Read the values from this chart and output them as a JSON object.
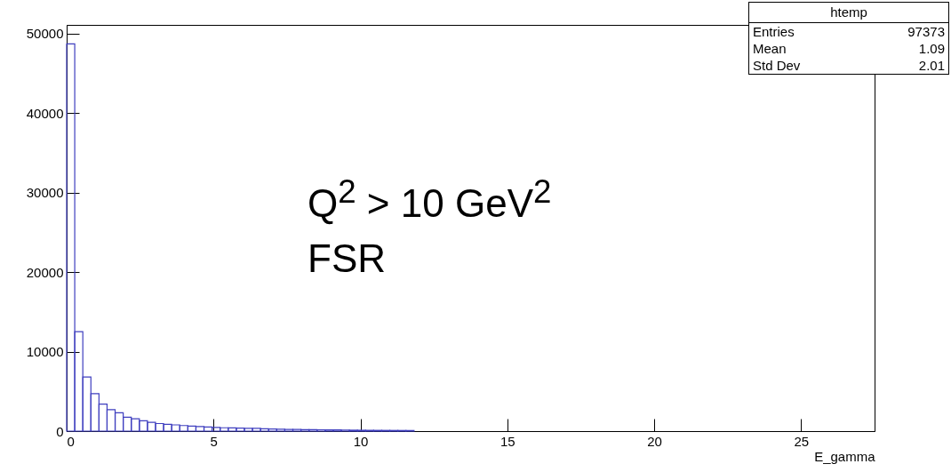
{
  "chart_data": {
    "type": "histogram",
    "xlabel": "E_gamma",
    "color": "#3f3fbf",
    "bins": [
      0,
      0.275,
      0.55,
      0.825,
      1.1,
      1.375,
      1.65,
      1.925,
      2.2,
      2.475,
      2.75,
      3.025,
      3.3,
      3.575,
      3.85,
      4.125,
      4.4,
      4.675,
      4.95,
      5.225,
      5.5,
      5.775,
      6.05,
      6.325,
      6.6,
      6.875,
      7.15,
      7.425,
      7.7,
      7.975,
      8.25,
      8.525,
      8.8,
      9.075,
      9.35,
      9.625,
      9.9,
      10.175,
      10.45,
      10.725,
      11,
      11.275,
      11.55,
      11.825
    ],
    "values": [
      48700,
      12500,
      6800,
      4700,
      3400,
      2700,
      2300,
      1750,
      1550,
      1300,
      1100,
      950,
      850,
      780,
      700,
      640,
      580,
      520,
      470,
      420,
      400,
      380,
      360,
      340,
      290,
      270,
      230,
      210,
      200,
      190,
      180,
      170,
      160,
      150,
      140,
      120,
      110,
      100,
      95,
      90,
      85,
      80,
      75
    ],
    "xlim": [
      0,
      27.5
    ],
    "xticks": [
      0,
      5,
      10,
      15,
      20,
      25
    ],
    "ylim": [
      0,
      51100
    ],
    "yticks": [
      0,
      10000,
      20000,
      30000,
      40000,
      50000
    ],
    "annotations": [
      "Q$^{2}$ > 10 GeV$^{2}$",
      "FSR",
      "htemp",
      "Entries",
      "97373",
      "Mean",
      "1.09",
      "Std Dev",
      "2.01"
    ]
  }
}
